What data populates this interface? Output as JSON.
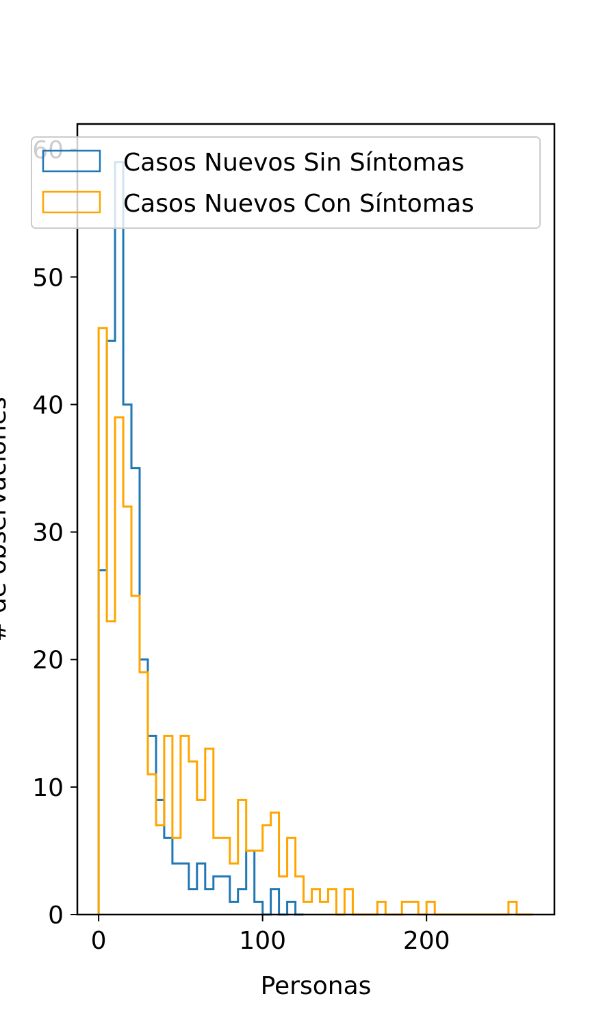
{
  "chart_data": {
    "type": "histogram",
    "title": "",
    "xlabel": "Personas",
    "ylabel": "# de observaciones",
    "xlim": [
      -13,
      278
    ],
    "ylim": [
      0,
      62
    ],
    "xticks": [
      0,
      100,
      200
    ],
    "yticks": [
      0,
      10,
      20,
      30,
      40,
      50,
      60
    ],
    "grid": false,
    "legend_position": "top-right",
    "series": [
      {
        "name": "Casos Nuevos Sin Síntomas",
        "color": "#1f77b4",
        "edges": [
          0,
          5,
          10,
          15,
          20,
          25,
          30,
          35,
          40,
          45,
          50,
          55,
          60,
          65,
          70,
          75,
          80,
          85,
          90,
          95,
          100,
          105,
          110,
          115,
          120,
          125
        ],
        "counts": [
          27,
          45,
          59,
          40,
          35,
          20,
          14,
          9,
          6,
          4,
          4,
          2,
          4,
          2,
          3,
          3,
          1,
          2,
          5,
          1,
          0,
          2,
          0,
          1,
          0
        ]
      },
      {
        "name": "Casos Nuevos Con Síntomas",
        "color": "#ffa500",
        "edges": [
          0,
          5,
          10,
          15,
          20,
          25,
          30,
          35,
          40,
          45,
          50,
          55,
          60,
          65,
          70,
          75,
          80,
          85,
          90,
          95,
          100,
          105,
          110,
          115,
          120,
          125,
          130,
          135,
          140,
          145,
          150,
          155,
          160,
          165,
          170,
          175,
          180,
          185,
          190,
          195,
          200,
          205,
          210,
          215,
          220,
          225,
          230,
          235,
          240,
          245,
          250,
          255,
          260,
          265
        ],
        "counts": [
          46,
          23,
          39,
          32,
          25,
          19,
          11,
          7,
          14,
          6,
          14,
          12,
          9,
          13,
          6,
          6,
          4,
          9,
          5,
          5,
          7,
          8,
          3,
          6,
          3,
          1,
          2,
          1,
          2,
          0,
          2,
          0,
          0,
          0,
          1,
          0,
          0,
          1,
          1,
          0,
          1,
          0,
          0,
          0,
          0,
          0,
          0,
          0,
          0,
          0,
          1,
          0,
          0
        ]
      }
    ]
  }
}
